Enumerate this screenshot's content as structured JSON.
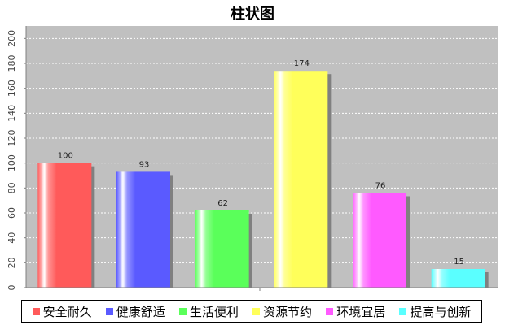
{
  "chart_data": {
    "type": "bar",
    "title": "柱状图",
    "categories": [
      "安全耐久",
      "健康舒适",
      "生活便利",
      "资源节约",
      "环境宜居",
      "提高与创新"
    ],
    "values": [
      100,
      93,
      62,
      174,
      76,
      15
    ],
    "data_labels": [
      "100",
      "93",
      "62",
      "174",
      "76",
      "15"
    ],
    "colors": [
      "#ff5a5a",
      "#5a5aff",
      "#5aff5a",
      "#ffff5a",
      "#ff5aff",
      "#5affff"
    ],
    "ylim": [
      0,
      210
    ],
    "yticks": [
      0,
      20,
      40,
      60,
      80,
      100,
      120,
      140,
      160,
      180,
      200
    ],
    "ytick_labels": [
      "0",
      "20",
      "40",
      "60",
      "80",
      "100",
      "120",
      "140",
      "160",
      "180",
      "200"
    ],
    "xlabel": "",
    "ylabel": "",
    "grid": true,
    "legend_position": "bottom",
    "plot_background": "#c0c0c0"
  }
}
